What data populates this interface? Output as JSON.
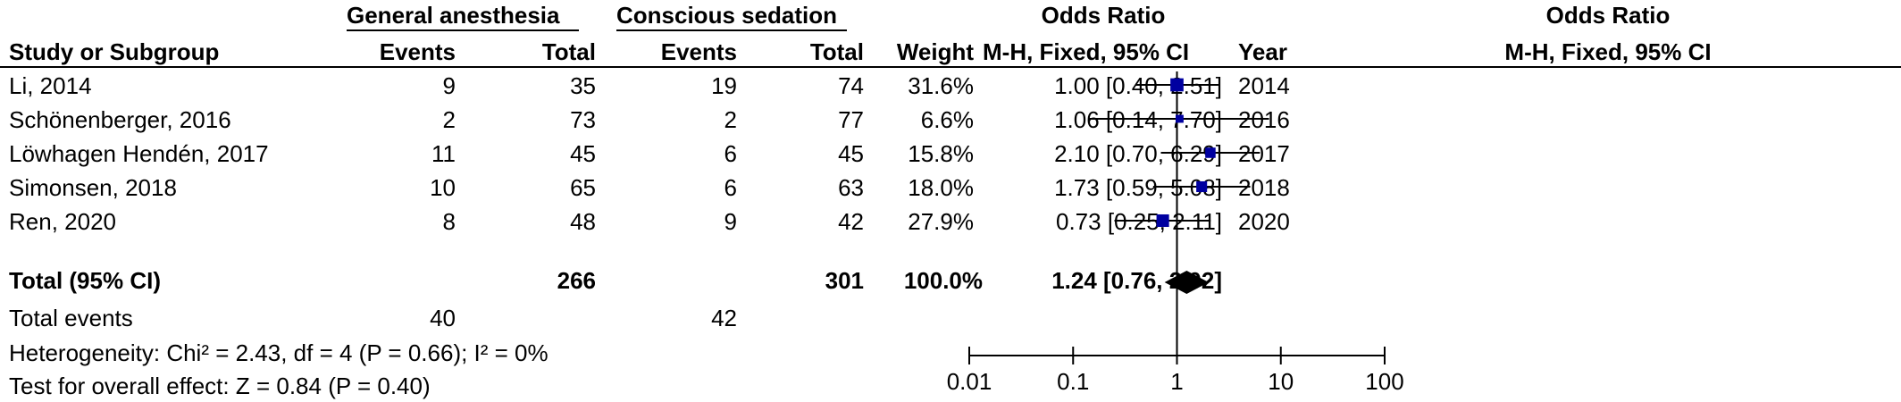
{
  "header": {
    "group1": "General anesthesia",
    "group2": "Conscious sedation",
    "or_table": "Odds Ratio",
    "or_plot": "Odds Ratio",
    "col_study": "Study or Subgroup",
    "col_events1": "Events",
    "col_total1": "Total",
    "col_events2": "Events",
    "col_total2": "Total",
    "col_weight": "Weight",
    "col_method": "M-H, Fixed, 95% CI",
    "col_year": "Year",
    "plot_method": "M-H, Fixed, 95% CI"
  },
  "studies": [
    {
      "name": "Li, 2014",
      "events1": "9",
      "total1": "35",
      "events2": "19",
      "total2": "74",
      "weight": "31.6%",
      "ci": "1.00 [0.40, 2.51]",
      "year": "2014"
    },
    {
      "name": "Schönenberger, 2016",
      "events1": "2",
      "total1": "73",
      "events2": "2",
      "total2": "77",
      "weight": "6.6%",
      "ci": "1.06 [0.14, 7.70]",
      "year": "2016"
    },
    {
      "name": "Löwhagen Hendén, 2017",
      "events1": "11",
      "total1": "45",
      "events2": "6",
      "total2": "45",
      "weight": "15.8%",
      "ci": "2.10 [0.70, 6.29]",
      "year": "2017"
    },
    {
      "name": "Simonsen, 2018",
      "events1": "10",
      "total1": "65",
      "events2": "6",
      "total2": "63",
      "weight": "18.0%",
      "ci": "1.73 [0.59, 5.08]",
      "year": "2018"
    },
    {
      "name": "Ren, 2020",
      "events1": "8",
      "total1": "48",
      "events2": "9",
      "total2": "42",
      "weight": "27.9%",
      "ci": "0.73 [0.25, 2.11]",
      "year": "2020"
    }
  ],
  "total": {
    "label": "Total (95% CI)",
    "total1": "266",
    "total2": "301",
    "weight": "100.0%",
    "ci": "1.24 [0.76, 2.02]"
  },
  "events": {
    "label": "Total events",
    "events1": "40",
    "events2": "42"
  },
  "stats": {
    "heterogeneity": "Heterogeneity: Chi² = 2.43, df = 4 (P = 0.66); I² = 0%",
    "overall": "Test for overall effect: Z = 0.84 (P = 0.40)"
  },
  "colors": {
    "marker": "#0000a0",
    "ink": "#000000"
  },
  "chart_data": {
    "type": "forest",
    "scale": "log",
    "xlim": [
      0.01,
      100
    ],
    "ticks": [
      0.01,
      0.1,
      1,
      10,
      100
    ],
    "tick_labels": [
      "0.01",
      "0.1",
      "1",
      "10",
      "100"
    ],
    "reference_line": 1,
    "points": [
      {
        "name": "Li, 2014",
        "or": 1.0,
        "lo": 0.4,
        "hi": 2.51,
        "weight": 31.6
      },
      {
        "name": "Schönenberger, 2016",
        "or": 1.06,
        "lo": 0.14,
        "hi": 7.7,
        "weight": 6.6
      },
      {
        "name": "Löwhagen Hendén, 2017",
        "or": 2.1,
        "lo": 0.7,
        "hi": 6.29,
        "weight": 15.8
      },
      {
        "name": "Simonsen, 2018",
        "or": 1.73,
        "lo": 0.59,
        "hi": 5.08,
        "weight": 18.0
      },
      {
        "name": "Ren, 2020",
        "or": 0.73,
        "lo": 0.25,
        "hi": 2.11,
        "weight": 27.9
      }
    ],
    "pooled": {
      "or": 1.24,
      "lo": 0.76,
      "hi": 2.02
    }
  }
}
